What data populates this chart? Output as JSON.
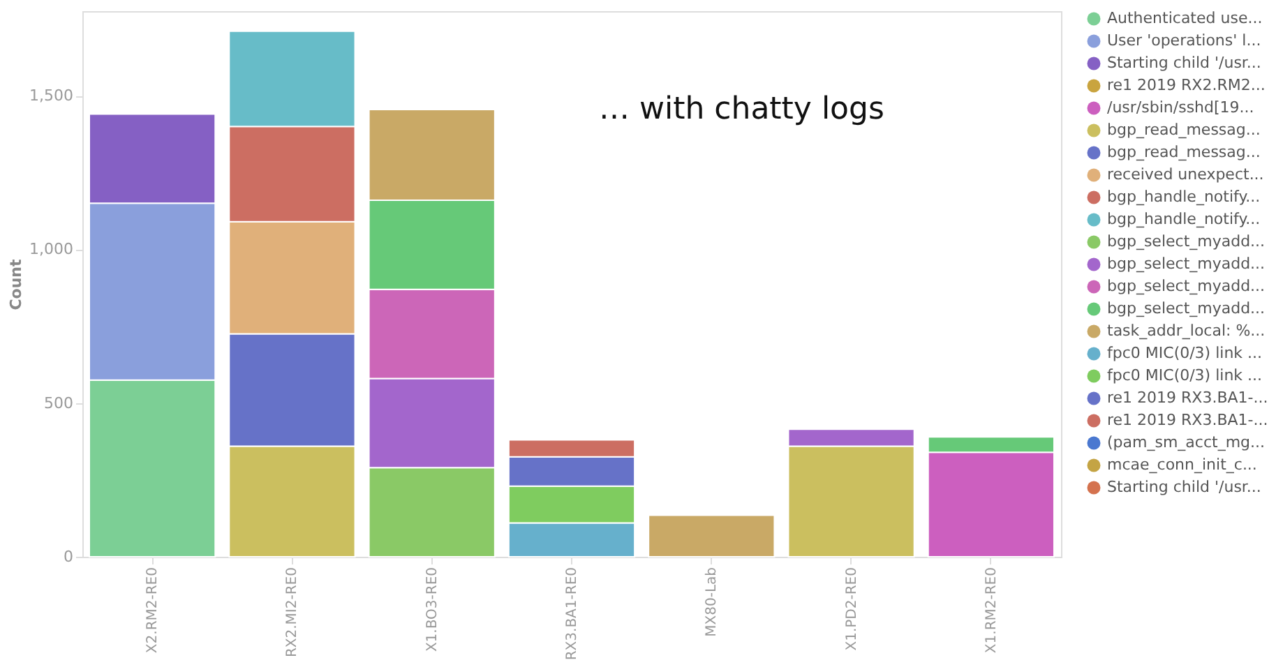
{
  "chart_data": {
    "type": "bar",
    "stacked": true,
    "ylabel": "Count",
    "categories": [
      "X2.RM2-RE0",
      "RX2.MI2-RE0",
      "X1.BO3-RE0",
      "RX3.BA1-RE0",
      "MX80-Lab",
      "X1.PD2-RE0",
      "X1.RM2-RE0"
    ],
    "ylim": [
      0,
      1775
    ],
    "yticks": [
      {
        "value": 0,
        "label": "0"
      },
      {
        "value": 500,
        "label": "500"
      },
      {
        "value": 1000,
        "label": "1,000"
      },
      {
        "value": 1500,
        "label": "1,500"
      }
    ],
    "grid": false,
    "legend": "right",
    "annotations": [
      "… with chatty logs"
    ],
    "series": [
      {
        "name": "Authenticated use...",
        "color": "#7ccf95",
        "values": [
          575,
          null,
          null,
          null,
          null,
          null,
          null
        ]
      },
      {
        "name": "User 'operations' l...",
        "color": "#8a9fdc",
        "values": [
          575,
          null,
          null,
          null,
          null,
          null,
          null
        ]
      },
      {
        "name": "Starting child '/usr...",
        "color": "#8560c4",
        "values": [
          290,
          null,
          null,
          null,
          null,
          null,
          null
        ]
      },
      {
        "name": "re1 2019 RX2.RM2...",
        "color": "#c9a43f",
        "values": [
          null,
          null,
          null,
          null,
          null,
          null,
          null
        ]
      },
      {
        "name": "/usr/sbin/sshd[19...",
        "color": "#cc5fbf",
        "values": [
          null,
          null,
          null,
          null,
          null,
          null,
          340
        ]
      },
      {
        "name": "bgp_read_messag...",
        "color": "#cbbf5f",
        "values": [
          null,
          360,
          null,
          null,
          null,
          360,
          null
        ]
      },
      {
        "name": "bgp_read_messag...",
        "color": "#6672c8",
        "values": [
          null,
          365,
          null,
          null,
          null,
          null,
          null
        ]
      },
      {
        "name": "received unexpect...",
        "color": "#e0b07a",
        "values": [
          null,
          365,
          null,
          null,
          null,
          null,
          null
        ]
      },
      {
        "name": "bgp_handle_notify...",
        "color": "#cc6e62",
        "values": [
          null,
          310,
          null,
          null,
          null,
          null,
          null
        ]
      },
      {
        "name": "bgp_handle_notify...",
        "color": "#67bcc8",
        "values": [
          null,
          310,
          null,
          null,
          null,
          null,
          null
        ]
      },
      {
        "name": "bgp_select_myadd...",
        "color": "#8ac966",
        "values": [
          null,
          null,
          290,
          null,
          null,
          null,
          null
        ]
      },
      {
        "name": "bgp_select_myadd...",
        "color": "#a366cc",
        "values": [
          null,
          null,
          290,
          null,
          null,
          55,
          null
        ]
      },
      {
        "name": "bgp_select_myadd...",
        "color": "#cc66b8",
        "values": [
          null,
          null,
          290,
          null,
          null,
          null,
          null
        ]
      },
      {
        "name": "bgp_select_myadd...",
        "color": "#66c978",
        "values": [
          null,
          null,
          290,
          null,
          null,
          null,
          50
        ]
      },
      {
        "name": "task_addr_local: %...",
        "color": "#c9a966",
        "values": [
          null,
          null,
          295,
          null,
          135,
          null,
          null
        ]
      },
      {
        "name": "fpc0 MIC(0/3) link ...",
        "color": "#66b0cc",
        "values": [
          null,
          null,
          null,
          110,
          null,
          null,
          null
        ]
      },
      {
        "name": "fpc0 MIC(0/3) link ...",
        "color": "#7fcc5f",
        "values": [
          null,
          null,
          null,
          120,
          null,
          null,
          null
        ]
      },
      {
        "name": "re1 2019 RX3.BA1-...",
        "color": "#6672c8",
        "values": [
          null,
          null,
          null,
          95,
          null,
          null,
          null
        ]
      },
      {
        "name": "re1 2019 RX3.BA1-...",
        "color": "#cc6e62",
        "values": [
          null,
          null,
          null,
          55,
          null,
          null,
          null
        ]
      },
      {
        "name": "(pam_sm_acct_mg...",
        "color": "#4a78d0",
        "values": [
          null,
          null,
          null,
          null,
          null,
          null,
          null
        ]
      },
      {
        "name": "mcae_conn_init_c...",
        "color": "#c4a444",
        "values": [
          null,
          null,
          null,
          null,
          null,
          null,
          null
        ]
      },
      {
        "name": "Starting child '/usr...",
        "color": "#d4724e",
        "values": [
          null,
          null,
          null,
          null,
          null,
          null,
          null
        ]
      }
    ]
  }
}
